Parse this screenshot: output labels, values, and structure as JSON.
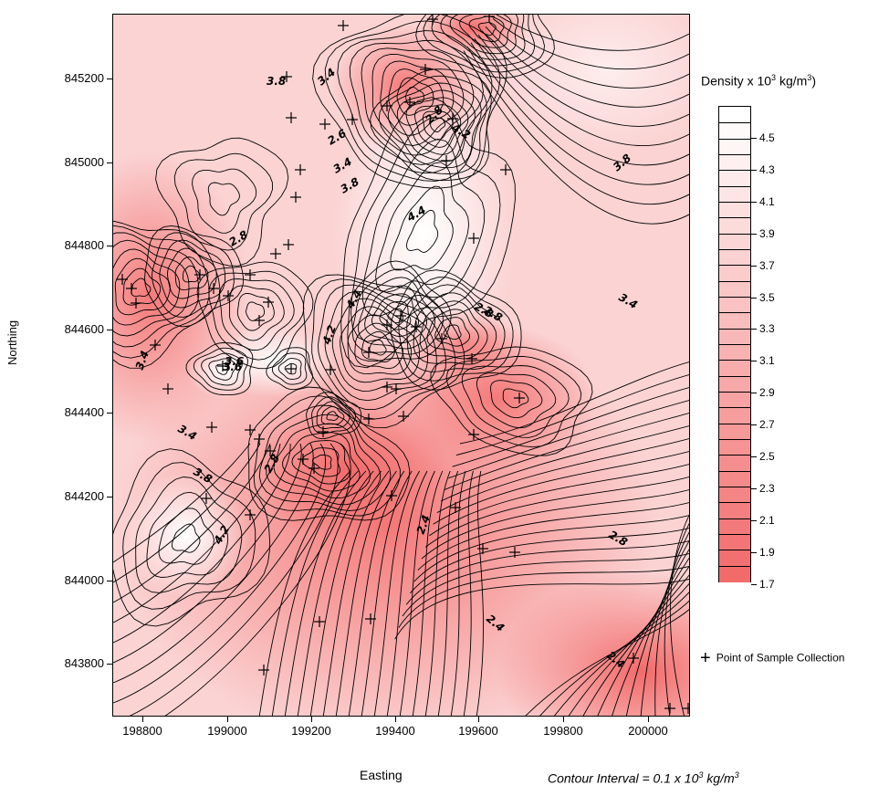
{
  "axes": {
    "x_title": "Easting",
    "y_title": "Northing",
    "x_ticks": [
      "198800",
      "199000",
      "199200",
      "199400",
      "199600",
      "199800",
      "200000"
    ],
    "y_ticks": [
      "845200",
      "845000",
      "844800",
      "844600",
      "844400",
      "844200",
      "844000",
      "843800"
    ]
  },
  "legend": {
    "title_prefix": "Density x 10",
    "title_sup": "3",
    "title_suffix": " kg/m",
    "title_sup2": "3",
    "title_end": ")",
    "labels": [
      "4.5",
      "4.3",
      "4.1",
      "3.9",
      "3.7",
      "3.5",
      "3.3",
      "3.1",
      "2.9",
      "2.7",
      "2.5",
      "2.3",
      "2.1",
      "1.9",
      "1.7"
    ],
    "sample_symbol": "+",
    "sample_label": "Point of Sample Collection"
  },
  "note": {
    "prefix": "Contour Interval = 0.1 x 10",
    "sup": "3",
    "middle": " kg/m",
    "sup2": "3"
  },
  "contour_labels": [
    "3.8",
    "3.4",
    "2.8",
    "2.6",
    "3.4",
    "3.8",
    "4.2",
    "3.8",
    "4.4",
    "2.8",
    "3.4",
    "4.4",
    "2.8",
    "4.2",
    "3.6",
    "3.4",
    "3.4",
    "3.8",
    "4.2",
    "2.8",
    "2.4",
    "2.8",
    "2.4",
    "2.4",
    "2.8",
    "3.6"
  ],
  "colors": {
    "low": "#f26b6b",
    "high": "#ffffff",
    "line": "#000000"
  }
}
